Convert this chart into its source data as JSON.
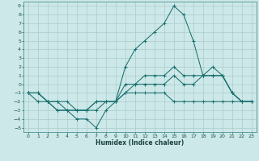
{
  "xlabel": "Humidex (Indice chaleur)",
  "bg_color": "#cde8e8",
  "grid_color": "#aacccc",
  "line_color": "#1a7070",
  "xlim": [
    -0.5,
    23.5
  ],
  "ylim": [
    -5.5,
    9.5
  ],
  "xticks": [
    0,
    1,
    2,
    3,
    4,
    5,
    6,
    7,
    8,
    9,
    10,
    11,
    12,
    13,
    14,
    15,
    16,
    17,
    18,
    19,
    20,
    21,
    22,
    23
  ],
  "yticks": [
    -5,
    -4,
    -3,
    -2,
    -1,
    0,
    1,
    2,
    3,
    4,
    5,
    6,
    7,
    8,
    9
  ],
  "series": [
    {
      "x": [
        0,
        1,
        2,
        3,
        4,
        5,
        6,
        7,
        8,
        9,
        10,
        11,
        12,
        13,
        14,
        15,
        16,
        17,
        18,
        19,
        20,
        21,
        22,
        23
      ],
      "y": [
        -1,
        -1,
        -2,
        -3,
        -3,
        -4,
        -4,
        -5,
        -3,
        -2,
        2,
        4,
        5,
        6,
        7,
        9,
        8,
        5,
        1,
        1,
        1,
        -1,
        -2,
        -2
      ]
    },
    {
      "x": [
        0,
        1,
        2,
        3,
        4,
        5,
        6,
        7,
        8,
        9,
        10,
        11,
        12,
        13,
        14,
        15,
        16,
        17,
        18,
        19,
        20,
        21,
        22,
        23
      ],
      "y": [
        -1,
        -1,
        -2,
        -2,
        -3,
        -3,
        -3,
        -2,
        -2,
        -2,
        0,
        0,
        1,
        1,
        1,
        2,
        1,
        1,
        1,
        2,
        1,
        -1,
        -2,
        -2
      ]
    },
    {
      "x": [
        0,
        1,
        2,
        3,
        4,
        5,
        6,
        7,
        8,
        9,
        10,
        11,
        12,
        13,
        14,
        15,
        16,
        17,
        18,
        19,
        20,
        21,
        22,
        23
      ],
      "y": [
        -1,
        -1,
        -2,
        -2,
        -2,
        -3,
        -3,
        -2,
        -2,
        -2,
        -1,
        0,
        0,
        0,
        0,
        1,
        0,
        0,
        1,
        1,
        1,
        -1,
        -2,
        -2
      ]
    },
    {
      "x": [
        0,
        1,
        2,
        3,
        4,
        5,
        6,
        7,
        8,
        9,
        10,
        11,
        12,
        13,
        14,
        15,
        16,
        17,
        18,
        19,
        20,
        21,
        22,
        23
      ],
      "y": [
        -1,
        -2,
        -2,
        -3,
        -3,
        -3,
        -3,
        -3,
        -2,
        -2,
        -1,
        -1,
        -1,
        -1,
        -1,
        -2,
        -2,
        -2,
        -2,
        -2,
        -2,
        -2,
        -2,
        -2
      ]
    }
  ]
}
